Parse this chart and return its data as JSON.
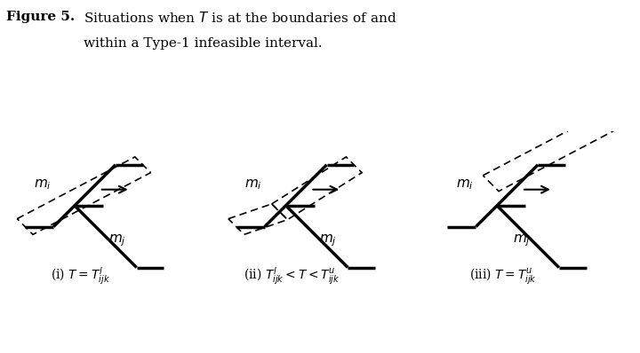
{
  "title_bold": "Figure 5.",
  "title_text": "Situations when $T$ is at the boundaries of and\n        within a Type-1 infeasible interval.",
  "captions": [
    "(i) $T = T^{l}_{ijk}$",
    "(ii) $T^{l}_{ijk} < T < T^{u}_{ijk}$",
    "(iii) $T = T^{u}_{ijk}$"
  ],
  "background_color": "#ffffff",
  "line_color": "#000000",
  "dashed_color": "#000000"
}
